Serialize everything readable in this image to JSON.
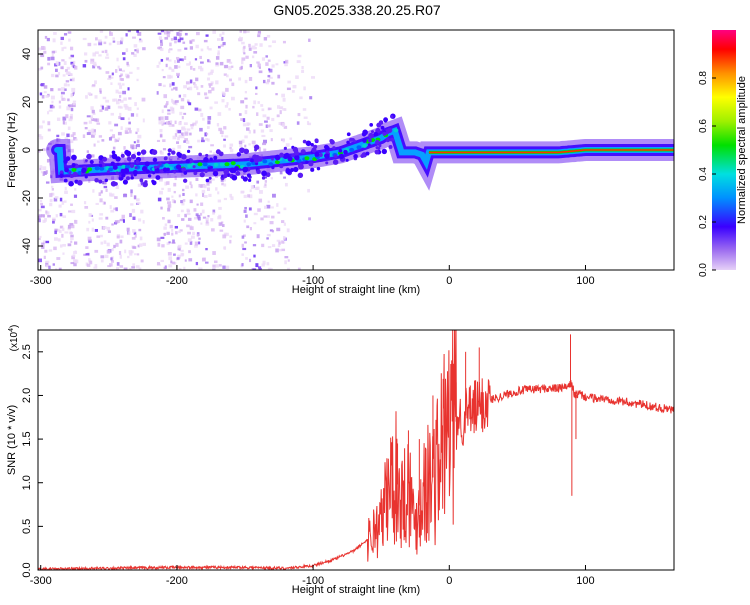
{
  "title": "GN05.2025.338.20.25.R07",
  "chart_data": [
    {
      "type": "heatmap",
      "xlabel": "Height of straight line (km)",
      "ylabel": "Frequency (Hz)",
      "xlim": [
        -302,
        165
      ],
      "ylim": [
        -50,
        50
      ],
      "xticks": [
        -300,
        -200,
        -100,
        0,
        100
      ],
      "yticks": [
        -40,
        -20,
        0,
        20,
        40
      ],
      "colorbar": {
        "label": "Normalized spectral amplitude",
        "range": [
          0,
          1
        ],
        "ticks": [
          "0.0",
          "0.2",
          "0.4",
          "0.6",
          "0.8"
        ]
      },
      "ridge": {
        "x": [
          -285,
          -250,
          -200,
          -150,
          -100,
          -80,
          -70,
          -60,
          -50,
          -45,
          -40,
          -35,
          -25,
          -20,
          -17,
          -15,
          -10,
          0,
          10,
          20,
          50,
          80,
          100,
          130,
          165
        ],
        "y": [
          -9,
          -8,
          -7,
          -6,
          -3,
          -1,
          1,
          3,
          5,
          7,
          8,
          -1,
          -1,
          -2,
          -5,
          -1,
          -1,
          -1,
          -1,
          -1,
          -1,
          -1,
          0,
          0,
          0
        ]
      }
    },
    {
      "type": "line",
      "xlabel": "Height of straight line (km)",
      "ylabel": "SNR (10 * v/v)",
      "y_multiplier": "(x10",
      "y_multiplier_exp": "4",
      "y_multiplier_close": ")",
      "xlim": [
        -302,
        165
      ],
      "ylim": [
        0,
        2.75
      ],
      "xticks": [
        -300,
        -200,
        -100,
        0,
        100
      ],
      "yticks": [
        "0.0",
        "0.5",
        "1.0",
        "1.5",
        "2.0",
        "2.5"
      ],
      "color": "#e8332f",
      "x": [
        -302,
        -250,
        -200,
        -150,
        -120,
        -100,
        -85,
        -70,
        -60,
        -50,
        -45,
        -40,
        -35,
        -30,
        -25,
        -20,
        -15,
        -10,
        -5,
        0,
        10,
        20,
        30,
        40,
        50,
        60,
        70,
        80,
        88,
        90,
        92,
        95,
        100,
        120,
        140,
        165
      ],
      "y": [
        0.01,
        0.02,
        0.03,
        0.03,
        0.02,
        0.05,
        0.12,
        0.22,
        0.35,
        0.55,
        0.9,
        1.1,
        0.8,
        1.0,
        0.5,
        0.9,
        1.0,
        1.1,
        1.45,
        1.65,
        1.75,
        1.85,
        1.95,
        2.0,
        2.05,
        2.07,
        2.08,
        2.08,
        2.1,
        2.15,
        2.0,
        2.02,
        1.98,
        1.95,
        1.9,
        1.83
      ],
      "spikes": [
        {
          "x": -38,
          "y": 1.45
        },
        {
          "x": -30,
          "y": 1.6
        },
        {
          "x": -22,
          "y": 1.5
        },
        {
          "x": -12,
          "y": 2.0
        },
        {
          "x": 5,
          "y": 2.15
        },
        {
          "x": 12,
          "y": 2.5
        },
        {
          "x": 22,
          "y": 2.55
        },
        {
          "x": 89,
          "y": 2.7
        },
        {
          "x": 90,
          "y": 0.85
        },
        {
          "x": 93,
          "y": 1.5
        }
      ]
    }
  ]
}
